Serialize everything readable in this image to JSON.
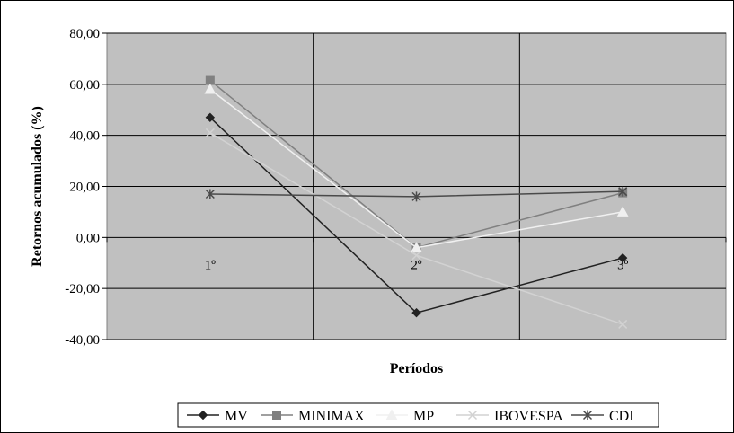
{
  "chart_data": {
    "type": "line",
    "categories": [
      "1º",
      "2º",
      "3º"
    ],
    "series": [
      {
        "name": "MV",
        "values": [
          47.0,
          -29.5,
          -8.0
        ],
        "color": "#222222",
        "marker": "diamond"
      },
      {
        "name": "MINIMAX",
        "values": [
          61.5,
          -4.0,
          17.5
        ],
        "color": "#808080",
        "marker": "square"
      },
      {
        "name": "MP",
        "values": [
          58.0,
          -4.0,
          10.0
        ],
        "color": "#f0f0f0",
        "marker": "triangle"
      },
      {
        "name": "IBOVESPA",
        "values": [
          41.0,
          -7.0,
          -34.0
        ],
        "color": "#d2d2d2",
        "marker": "x"
      },
      {
        "name": "CDI",
        "values": [
          17.0,
          16.0,
          18.0
        ],
        "color": "#4a4a4a",
        "marker": "star"
      }
    ],
    "ylabel": "Retornos acumulados (%)",
    "xlabel": "Períodos",
    "ylim": [
      -40,
      80
    ],
    "yticks": [
      "-40,00",
      "-20,00",
      "0,00",
      "20,00",
      "40,00",
      "60,00",
      "80,00"
    ],
    "grid": true,
    "legend": "bottom",
    "plot_background": "#c0c0c0"
  }
}
